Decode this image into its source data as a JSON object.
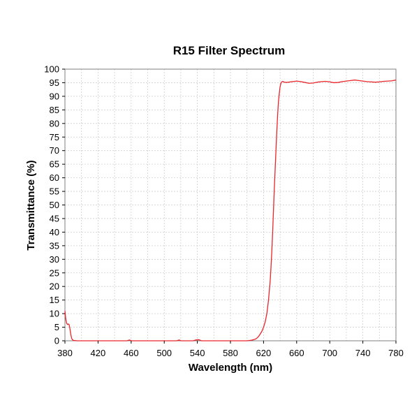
{
  "chart_data": {
    "type": "line",
    "title": "R15 Filter Spectrum",
    "xlabel": "Wavelength (nm)",
    "ylabel": "Transmittance (%)",
    "xlim": [
      380,
      780
    ],
    "ylim": [
      0,
      100
    ],
    "x_ticks": [
      380,
      420,
      460,
      500,
      540,
      580,
      620,
      660,
      700,
      740,
      780
    ],
    "y_ticks": [
      0,
      5,
      10,
      15,
      20,
      25,
      30,
      35,
      40,
      45,
      50,
      55,
      60,
      65,
      70,
      75,
      80,
      85,
      90,
      95,
      100
    ],
    "x_minor_step": 20,
    "grid": true,
    "legend": "none",
    "series": [
      {
        "color": "#e8262a",
        "x": [
          380,
          381,
          382,
          383,
          384,
          385,
          386,
          387,
          388,
          389,
          390,
          391,
          392,
          395,
          400,
          420,
          440,
          455,
          458,
          460,
          480,
          500,
          515,
          518,
          520,
          535,
          538,
          542,
          545,
          560,
          580,
          600,
          605,
          608,
          610,
          612,
          614,
          616,
          618,
          620,
          622,
          624,
          626,
          628,
          629,
          630,
          631,
          632,
          633,
          634,
          635,
          636,
          637,
          638,
          639,
          640,
          641,
          642,
          643,
          644,
          645,
          648,
          650,
          655,
          660,
          665,
          670,
          675,
          680,
          685,
          690,
          695,
          700,
          705,
          710,
          715,
          720,
          725,
          730,
          735,
          740,
          745,
          750,
          755,
          760,
          765,
          770,
          775,
          780
        ],
        "y": [
          11,
          8,
          6.5,
          6,
          6.2,
          6,
          4.5,
          2.5,
          1,
          0.4,
          0.2,
          0.1,
          0.1,
          0,
          0,
          0,
          0,
          0,
          0.3,
          0,
          0,
          0,
          0,
          0.3,
          0,
          0,
          0.3,
          0.4,
          0,
          0,
          0,
          0,
          0.2,
          0.4,
          0.6,
          1,
          1.6,
          2.5,
          3.5,
          5,
          7,
          10,
          15,
          22,
          27,
          33,
          40,
          48,
          56,
          63,
          70,
          77,
          83,
          88,
          91,
          93.5,
          94.8,
          95.3,
          95.5,
          95.4,
          95.2,
          95.1,
          95.2,
          95.4,
          95.6,
          95.4,
          95.1,
          94.8,
          94.9,
          95.2,
          95.4,
          95.5,
          95.3,
          95.0,
          95.1,
          95.4,
          95.6,
          95.8,
          96.0,
          95.8,
          95.6,
          95.4,
          95.3,
          95.2,
          95.3,
          95.5,
          95.6,
          95.7,
          96.0
        ]
      }
    ]
  }
}
